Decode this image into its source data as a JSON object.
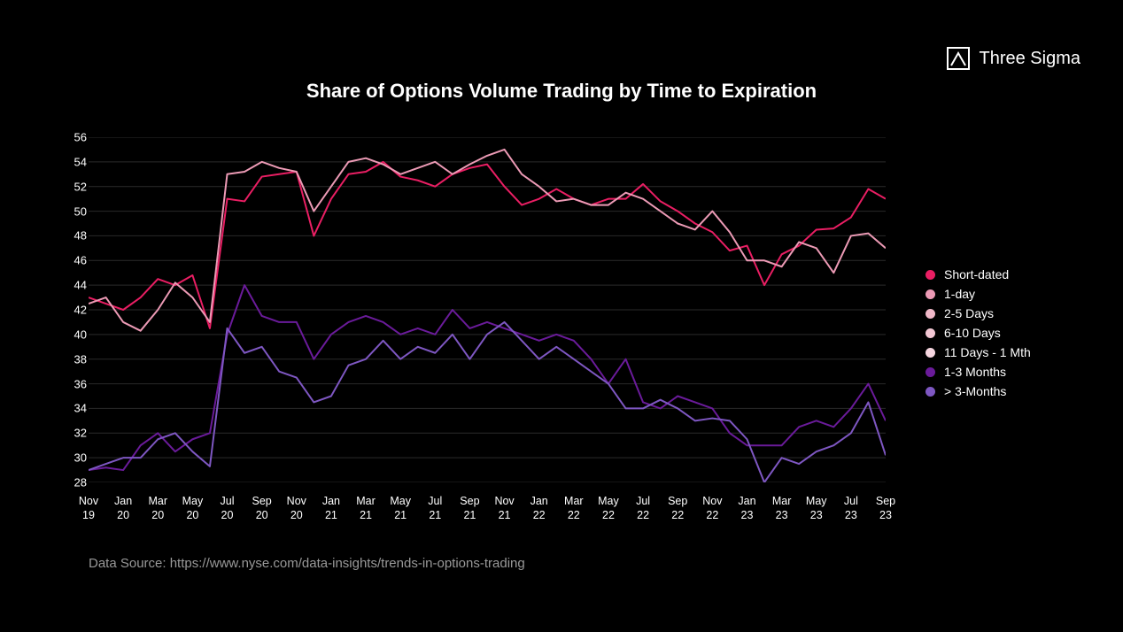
{
  "logo": {
    "text": "Three Sigma",
    "icon_stroke": "#ffffff"
  },
  "chart": {
    "type": "line",
    "title": "Share of Options Volume Trading by Time to Expiration",
    "background_color": "#000000",
    "grid_color": "#2a2a2a",
    "axis_color": "#555555",
    "text_color": "#ffffff",
    "title_fontsize": 22,
    "label_fontsize": 13,
    "line_width": 2,
    "ylim": [
      28,
      56
    ],
    "ytick_step": 2,
    "yticks": [
      28,
      30,
      32,
      34,
      36,
      38,
      40,
      42,
      44,
      46,
      48,
      50,
      52,
      54,
      56
    ],
    "x_labels": [
      "Nov\n19",
      "Jan\n20",
      "Mar\n20",
      "May\n20",
      "Jul\n20",
      "Sep\n20",
      "Nov\n20",
      "Jan\n21",
      "Mar\n21",
      "May\n21",
      "Jul\n21",
      "Sep\n21",
      "Nov\n21",
      "Jan\n22",
      "Mar\n22",
      "May\n22",
      "Jul\n22",
      "Sep\n22",
      "Nov\n22",
      "Jan\n23",
      "Mar\n23",
      "May\n23",
      "Jul\n23",
      "Sep\n23"
    ],
    "x_label_indices": [
      0,
      2,
      4,
      6,
      8,
      10,
      12,
      14,
      16,
      18,
      20,
      22,
      24,
      26,
      28,
      30,
      32,
      34,
      36,
      38,
      40,
      42,
      44,
      46
    ],
    "n_points": 47,
    "series": {
      "short_dated": {
        "label": "Short-dated",
        "color": "#e91e63",
        "values": [
          43,
          42.5,
          42,
          43,
          44.5,
          44,
          44.8,
          40.5,
          51,
          50.8,
          52.8,
          53,
          53.2,
          48,
          51,
          53,
          53.2,
          54,
          52.8,
          52.5,
          52,
          53,
          53.5,
          53.8,
          52,
          50.5,
          51,
          51.8,
          51,
          50.5,
          51,
          51,
          52.2,
          50.8,
          50,
          49,
          48.3,
          46.8,
          47.2,
          44,
          46.5,
          47.2,
          48.5,
          48.6,
          49.5,
          51.8,
          51
        ]
      },
      "one_day": {
        "label": "1-day",
        "color": "#ec9ab5",
        "values": [
          42.5,
          43,
          41,
          40.3,
          42,
          44.2,
          43,
          41,
          53,
          53.2,
          54,
          53.5,
          53.2,
          50,
          52,
          54,
          54.3,
          53.8,
          53,
          53.5,
          54,
          53,
          53.8,
          54.5,
          55,
          53,
          52,
          50.8,
          51,
          50.5,
          50.5,
          51.5,
          51,
          50,
          49,
          48.5,
          50,
          48.3,
          46,
          46,
          45.5,
          47.5,
          47,
          45,
          48,
          48.2,
          47
        ]
      },
      "two_five": {
        "label": "2-5 Days",
        "color": "#f0b8c8",
        "values": null
      },
      "six_ten": {
        "label": "6-10 Days",
        "color": "#f3c7d4",
        "values": null
      },
      "eleven_month": {
        "label": "11 Days - 1 Mth",
        "color": "#f6d6e0",
        "values": null
      },
      "one_three_months": {
        "label": "1-3 Months",
        "color": "#6a1b9a",
        "values": [
          29,
          29.2,
          29,
          31,
          32,
          30.5,
          31.5,
          32,
          40,
          44,
          41.5,
          41,
          41,
          38,
          40,
          41,
          41.5,
          41,
          40,
          40.5,
          40,
          42,
          40.5,
          41,
          40.5,
          40,
          39.5,
          40,
          39.5,
          38,
          36,
          38,
          34.5,
          34,
          35,
          34.5,
          34,
          32,
          31,
          31,
          31,
          32.5,
          33,
          32.5,
          34,
          36,
          33
        ]
      },
      "gt_three_months": {
        "label": "> 3-Months",
        "color": "#7e57c2",
        "values": [
          29,
          29.5,
          30,
          30,
          31.5,
          32,
          30.5,
          29.3,
          40.5,
          38.5,
          39,
          37,
          36.5,
          34.5,
          35,
          37.5,
          38,
          39.5,
          38,
          39,
          38.5,
          40,
          38,
          40,
          41,
          39.5,
          38,
          39,
          38,
          37,
          36,
          34,
          34,
          34.7,
          34,
          33,
          33.2,
          33,
          31.5,
          28,
          30,
          29.5,
          30.5,
          31,
          32,
          34.5,
          30.2
        ]
      }
    }
  },
  "legend": {
    "items": [
      {
        "key": "short_dated",
        "label": "Short-dated",
        "color": "#e91e63"
      },
      {
        "key": "one_day",
        "label": "1-day",
        "color": "#ec9ab5"
      },
      {
        "key": "two_five",
        "label": "2-5 Days",
        "color": "#f0b8c8"
      },
      {
        "key": "six_ten",
        "label": "6-10 Days",
        "color": "#f3c7d4"
      },
      {
        "key": "eleven_month",
        "label": "11 Days - 1 Mth",
        "color": "#f6d6e0"
      },
      {
        "key": "one_three_months",
        "label": "1-3 Months",
        "color": "#6a1b9a"
      },
      {
        "key": "gt_three_months",
        "label": "> 3-Months",
        "color": "#7e57c2"
      }
    ]
  },
  "data_source": "Data Source: https://www.nyse.com/data-insights/trends-in-options-trading",
  "data_source_color": "#999999"
}
